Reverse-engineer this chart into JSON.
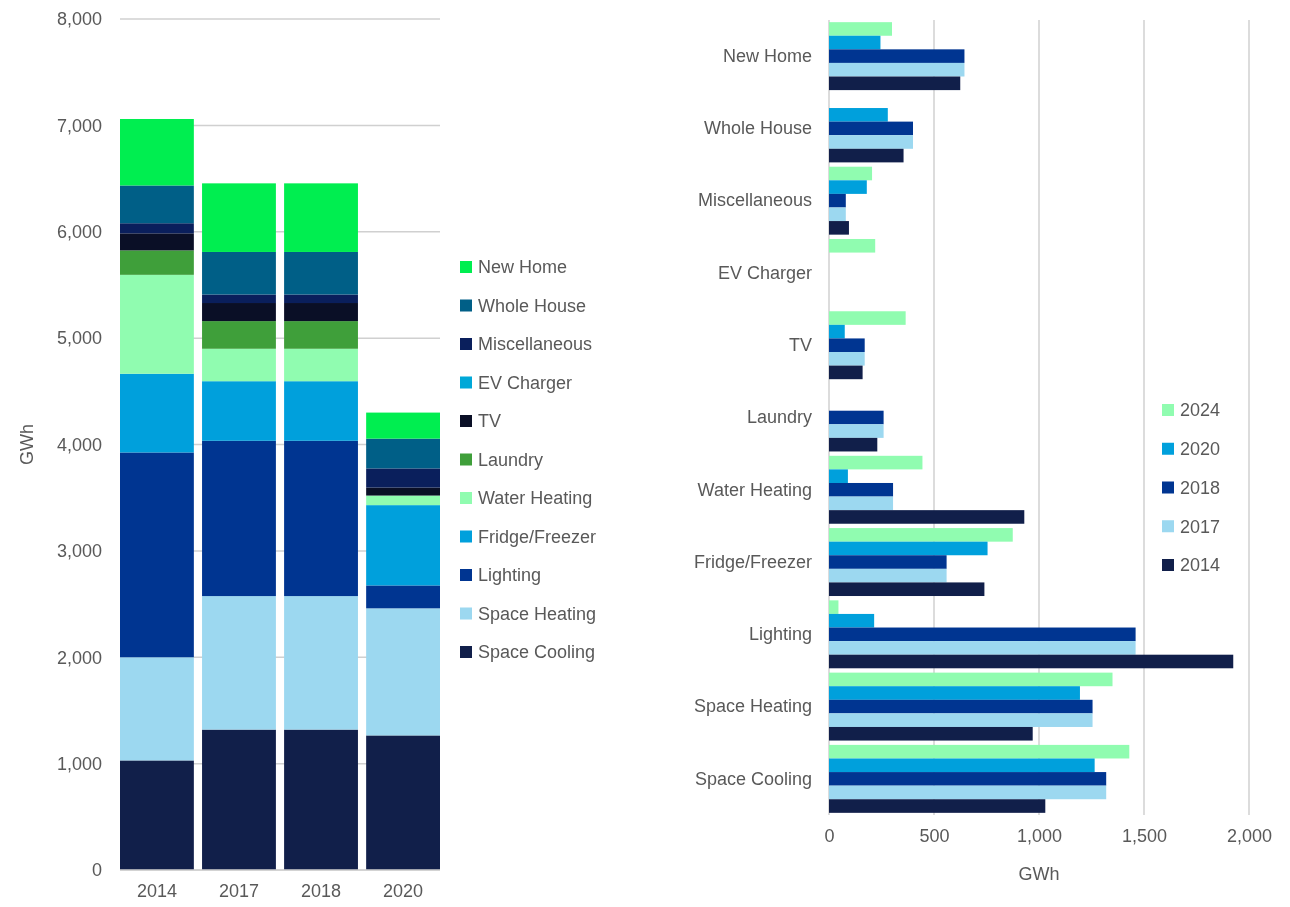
{
  "chart_data": [
    {
      "type": "bar",
      "stacked": true,
      "categories": [
        "2014",
        "2017",
        "2018",
        "2020"
      ],
      "ylabel": "GWh",
      "ylim": [
        0,
        8000
      ],
      "yticks": [
        0,
        {
          "value": 1000,
          "label": "1,000"
        },
        {
          "value": 2000,
          "label": "2,000"
        },
        {
          "value": 3000,
          "label": "3,000"
        },
        {
          "value": 4000,
          "label": "4,000"
        },
        {
          "value": 5000,
          "label": "5,000"
        },
        {
          "value": 6000,
          "label": "6,000"
        },
        {
          "value": 7000,
          "label": "7,000"
        },
        {
          "value": 8000,
          "label": "8,000"
        }
      ],
      "grid": "y",
      "legend": "right",
      "series": [
        {
          "name": "Space Cooling",
          "color": "#111f4a",
          "values": [
            1030,
            1320,
            1320,
            1265
          ]
        },
        {
          "name": "Space Heating",
          "color": "#9cd8f0",
          "values": [
            970,
            1255,
            1255,
            1195
          ]
        },
        {
          "name": "Lighting",
          "color": "#003591",
          "values": [
            1925,
            1460,
            1460,
            215
          ]
        },
        {
          "name": "Fridge/Freezer",
          "color": "#00a0dc",
          "values": [
            740,
            560,
            560,
            755
          ]
        },
        {
          "name": "Water Heating",
          "color": "#90fcb0",
          "values": [
            930,
            305,
            305,
            90
          ]
        },
        {
          "name": "Laundry",
          "color": "#3f9f3a",
          "values": [
            230,
            260,
            260,
            null
          ]
        },
        {
          "name": "TV",
          "color": "#0a0f26",
          "values": [
            160,
            170,
            170,
            75
          ]
        },
        {
          "name": "EV Charger",
          "color": "#00a8d8",
          "values": [
            null,
            null,
            null,
            null
          ]
        },
        {
          "name": "Miscellaneous",
          "color": "#0a1f5c",
          "values": [
            95,
            80,
            80,
            180
          ]
        },
        {
          "name": "Whole House",
          "color": "#005f87",
          "values": [
            355,
            400,
            400,
            280
          ]
        },
        {
          "name": "New Home",
          "color": "#00ee50",
          "values": [
            625,
            645,
            645,
            245
          ]
        }
      ]
    },
    {
      "type": "bar",
      "orientation": "horizontal",
      "categories": [
        "New Home",
        "Whole House",
        "Miscellaneous",
        "EV Charger",
        "TV",
        "Laundry",
        "Water Heating",
        "Fridge/Freezer",
        "Lighting",
        "Space Heating",
        "Space Cooling"
      ],
      "xlabel": "GWh",
      "xlim": [
        0,
        2000
      ],
      "xticks": [
        0,
        500,
        {
          "value": 1000,
          "label": "1,000"
        },
        {
          "value": 1500,
          "label": "1,500"
        },
        {
          "value": 2000,
          "label": "2,000"
        }
      ],
      "grid": "x",
      "legend": "right",
      "series": [
        {
          "name": "2024",
          "color": "#90fcb0",
          "values": [
            300,
            null,
            205,
            220,
            365,
            null,
            445,
            875,
            45,
            1350,
            1430
          ]
        },
        {
          "name": "2020",
          "color": "#00a0dc",
          "values": [
            245,
            280,
            180,
            null,
            75,
            null,
            90,
            755,
            215,
            1195,
            1265
          ]
        },
        {
          "name": "2018",
          "color": "#003591",
          "values": [
            645,
            400,
            80,
            null,
            170,
            260,
            305,
            560,
            1460,
            1255,
            1320
          ]
        },
        {
          "name": "2017",
          "color": "#9cd8f0",
          "values": [
            645,
            400,
            80,
            null,
            170,
            260,
            305,
            560,
            1460,
            1255,
            1320
          ]
        },
        {
          "name": "2014",
          "color": "#111f4a",
          "values": [
            625,
            355,
            95,
            null,
            160,
            230,
            930,
            740,
            1925,
            970,
            1030
          ]
        }
      ]
    }
  ]
}
